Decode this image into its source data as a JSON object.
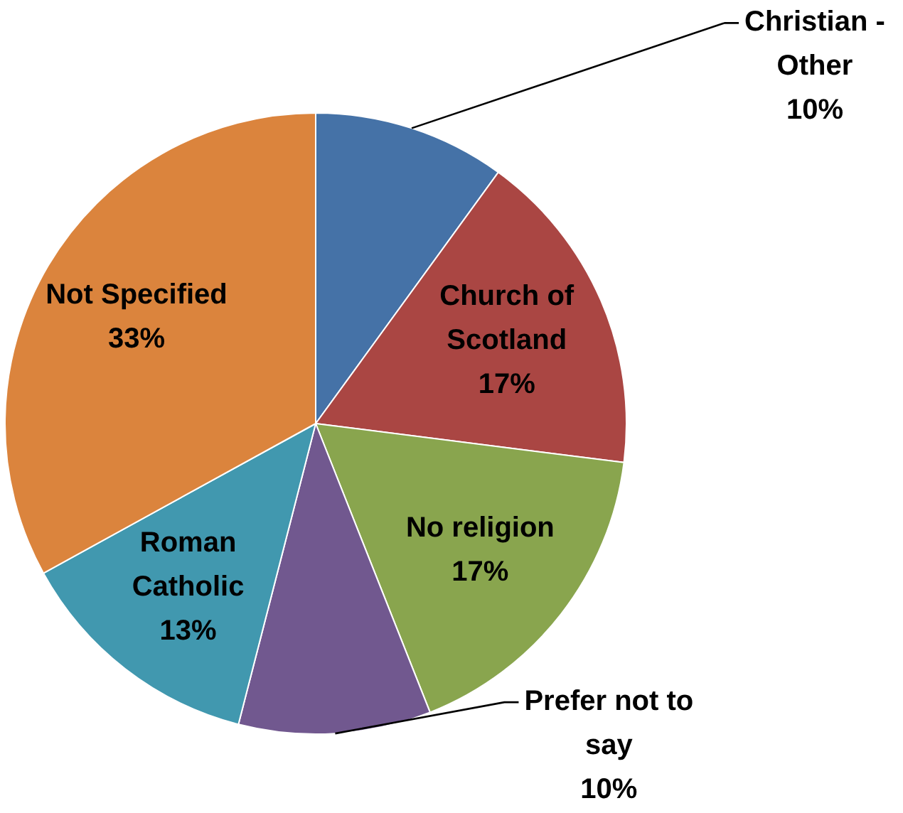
{
  "chart_data": {
    "type": "pie",
    "categories": [
      "Christian - Other",
      "Church of Scotland",
      "No religion",
      "Prefer not to say",
      "Roman Catholic",
      "Not Specified"
    ],
    "values": [
      10,
      17,
      17,
      10,
      13,
      33
    ],
    "colors": [
      "#4572a7",
      "#aa4643",
      "#89a54e",
      "#71588f",
      "#4198af",
      "#db843d"
    ],
    "value_labels": [
      "10%",
      "17%",
      "17%",
      "10%",
      "13%",
      "33%"
    ]
  }
}
